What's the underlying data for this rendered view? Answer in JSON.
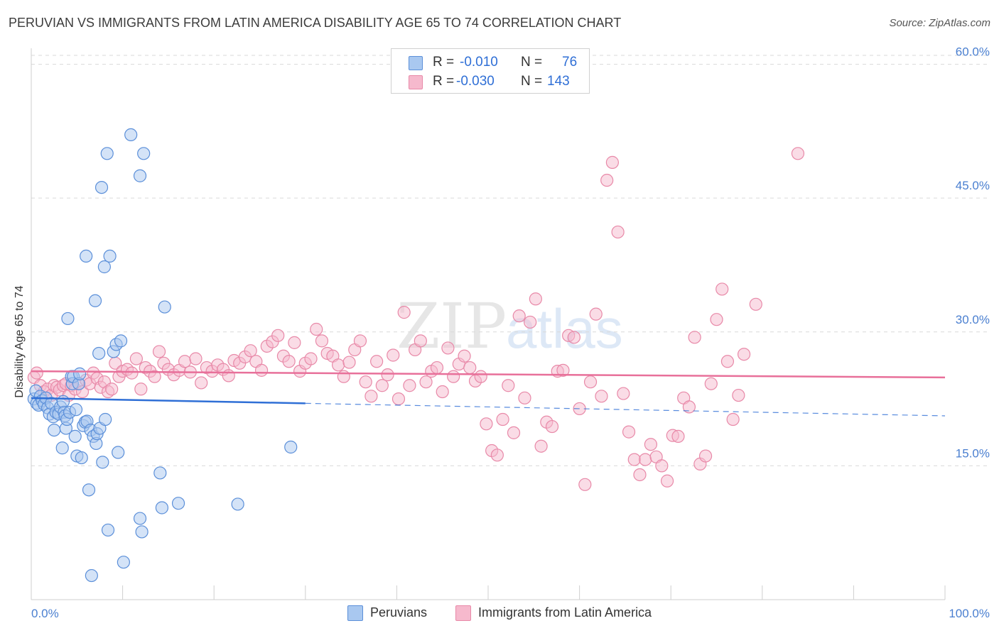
{
  "title": "PERUVIAN VS IMMIGRANTS FROM LATIN AMERICA DISABILITY AGE 65 TO 74 CORRELATION CHART",
  "source": "Source: ZipAtlas.com",
  "watermark": {
    "part1": "ZIP",
    "part2": "atlas"
  },
  "colors": {
    "blue_fill": "#a9c8f0",
    "blue_stroke": "#5b8fd9",
    "blue_line": "#2f6fd6",
    "pink_fill": "#f6b9cd",
    "pink_stroke": "#e889a8",
    "pink_line": "#e8709a",
    "grid": "#d9d9d9",
    "axis_label": "#4a7fd0"
  },
  "legend_top": {
    "rows": [
      {
        "r_label": "R =",
        "r_value": "-0.010",
        "n_label": "N =",
        "n_value": "76"
      },
      {
        "r_label": "R =",
        "r_value": "-0.030",
        "n_label": "N =",
        "n_value": "143"
      }
    ]
  },
  "legend_bottom": {
    "items": [
      "Peruvians",
      "Immigrants from Latin America"
    ]
  },
  "chart_data": {
    "type": "scatter",
    "xlabel": "",
    "ylabel": "Disability Age 65 to 74",
    "xlim": [
      0,
      100
    ],
    "ylim": [
      0,
      61
    ],
    "x_tick_labels": [
      "0.0%",
      "100.0%"
    ],
    "y_ticks": [
      15,
      30,
      45,
      60
    ],
    "y_tick_labels": [
      "15.0%",
      "30.0%",
      "45.0%",
      "60.0%"
    ],
    "grid": "horizontal dashed",
    "legend": "top-center",
    "series": [
      {
        "name": "Peruvians",
        "color": "#5b8fd9",
        "trend": {
          "x_solid": [
            0,
            30
          ],
          "x_dashed": [
            30,
            100
          ],
          "y_at_0": 22.6,
          "y_at_100": 20.6
        },
        "points": [
          [
            0.3,
            22.5
          ],
          [
            0.5,
            23.4
          ],
          [
            0.6,
            22.0
          ],
          [
            0.8,
            21.8
          ],
          [
            1.0,
            22.8
          ],
          [
            1.2,
            22.3
          ],
          [
            1.4,
            21.9
          ],
          [
            1.6,
            22.6
          ],
          [
            1.8,
            21.5
          ],
          [
            2.0,
            20.8
          ],
          [
            2.2,
            22.0
          ],
          [
            2.4,
            20.5
          ],
          [
            2.5,
            19.0
          ],
          [
            2.7,
            21.0
          ],
          [
            3.0,
            20.8
          ],
          [
            3.2,
            21.6
          ],
          [
            3.4,
            17.0
          ],
          [
            3.5,
            22.2
          ],
          [
            3.6,
            21.0
          ],
          [
            3.7,
            20.6
          ],
          [
            3.8,
            19.2
          ],
          [
            3.9,
            20.2
          ],
          [
            4.0,
            31.5
          ],
          [
            4.2,
            21.0
          ],
          [
            4.4,
            25.0
          ],
          [
            4.5,
            24.2
          ],
          [
            4.6,
            25.0
          ],
          [
            4.8,
            18.3
          ],
          [
            4.9,
            21.3
          ],
          [
            5.0,
            16.1
          ],
          [
            5.2,
            24.2
          ],
          [
            5.3,
            25.3
          ],
          [
            5.5,
            15.9
          ],
          [
            5.7,
            19.5
          ],
          [
            5.9,
            19.9
          ],
          [
            6.0,
            38.5
          ],
          [
            6.1,
            20.0
          ],
          [
            6.3,
            12.3
          ],
          [
            6.5,
            19.0
          ],
          [
            6.6,
            2.7
          ],
          [
            6.8,
            18.3
          ],
          [
            7.0,
            33.5
          ],
          [
            7.1,
            17.5
          ],
          [
            7.2,
            18.6
          ],
          [
            7.4,
            27.6
          ],
          [
            7.5,
            19.2
          ],
          [
            7.7,
            46.2
          ],
          [
            7.8,
            15.4
          ],
          [
            8.0,
            37.3
          ],
          [
            8.1,
            20.2
          ],
          [
            8.3,
            50.0
          ],
          [
            8.4,
            7.8
          ],
          [
            8.6,
            38.5
          ],
          [
            9.0,
            27.8
          ],
          [
            9.3,
            28.6
          ],
          [
            9.5,
            16.5
          ],
          [
            9.8,
            29.0
          ],
          [
            10.1,
            4.2
          ],
          [
            10.9,
            52.1
          ],
          [
            11.9,
            47.5
          ],
          [
            11.9,
            9.1
          ],
          [
            12.1,
            7.6
          ],
          [
            12.3,
            50.0
          ],
          [
            14.1,
            14.2
          ],
          [
            14.3,
            10.3
          ],
          [
            14.6,
            32.8
          ],
          [
            16.1,
            10.8
          ],
          [
            22.6,
            10.7
          ],
          [
            28.4,
            17.1
          ]
        ]
      },
      {
        "name": "Immigrants from Latin America",
        "color": "#e889a8",
        "trend": {
          "x_solid": [
            0,
            100
          ],
          "y_at_0": 25.6,
          "y_at_100": 24.9
        },
        "points": [
          [
            0.3,
            24.9
          ],
          [
            0.6,
            25.4
          ],
          [
            1.0,
            24.0
          ],
          [
            1.4,
            23.3
          ],
          [
            1.8,
            23.6
          ],
          [
            2.2,
            22.9
          ],
          [
            2.5,
            24.0
          ],
          [
            2.8,
            23.8
          ],
          [
            3.1,
            23.5
          ],
          [
            3.5,
            24.0
          ],
          [
            3.8,
            24.2
          ],
          [
            4.1,
            22.9
          ],
          [
            4.4,
            24.0
          ],
          [
            4.8,
            23.6
          ],
          [
            5.2,
            24.2
          ],
          [
            5.6,
            23.3
          ],
          [
            6.0,
            24.6
          ],
          [
            6.4,
            24.2
          ],
          [
            6.8,
            25.4
          ],
          [
            7.2,
            24.8
          ],
          [
            7.6,
            23.8
          ],
          [
            8.0,
            24.4
          ],
          [
            8.4,
            23.3
          ],
          [
            8.8,
            23.6
          ],
          [
            9.2,
            26.5
          ],
          [
            9.6,
            25.0
          ],
          [
            10.0,
            25.6
          ],
          [
            10.5,
            25.8
          ],
          [
            11.0,
            25.4
          ],
          [
            11.5,
            27.0
          ],
          [
            12.0,
            23.6
          ],
          [
            12.5,
            26.0
          ],
          [
            13.0,
            25.6
          ],
          [
            13.5,
            25.0
          ],
          [
            14.0,
            27.8
          ],
          [
            14.5,
            26.5
          ],
          [
            15.0,
            25.8
          ],
          [
            15.6,
            25.2
          ],
          [
            16.2,
            25.7
          ],
          [
            16.8,
            26.7
          ],
          [
            17.4,
            25.5
          ],
          [
            18.0,
            27.0
          ],
          [
            18.6,
            24.3
          ],
          [
            19.2,
            26.0
          ],
          [
            19.8,
            25.6
          ],
          [
            20.4,
            26.3
          ],
          [
            21.0,
            25.8
          ],
          [
            21.6,
            25.1
          ],
          [
            22.2,
            26.8
          ],
          [
            22.8,
            26.5
          ],
          [
            23.4,
            27.2
          ],
          [
            24.0,
            27.9
          ],
          [
            24.6,
            26.7
          ],
          [
            25.2,
            25.7
          ],
          [
            25.8,
            28.4
          ],
          [
            26.4,
            28.9
          ],
          [
            27.0,
            29.6
          ],
          [
            27.6,
            27.3
          ],
          [
            28.2,
            26.7
          ],
          [
            28.8,
            28.8
          ],
          [
            29.4,
            25.6
          ],
          [
            30.0,
            26.5
          ],
          [
            30.6,
            27.0
          ],
          [
            31.2,
            30.3
          ],
          [
            31.8,
            29.0
          ],
          [
            32.4,
            27.6
          ],
          [
            33.0,
            27.3
          ],
          [
            33.6,
            26.3
          ],
          [
            34.2,
            25.0
          ],
          [
            34.8,
            26.6
          ],
          [
            35.4,
            28.0
          ],
          [
            36.0,
            29.0
          ],
          [
            36.6,
            24.4
          ],
          [
            37.2,
            22.8
          ],
          [
            37.8,
            26.7
          ],
          [
            38.4,
            24.0
          ],
          [
            39.0,
            25.2
          ],
          [
            39.6,
            27.4
          ],
          [
            40.2,
            22.5
          ],
          [
            40.8,
            32.2
          ],
          [
            41.4,
            24.0
          ],
          [
            42.0,
            28.0
          ],
          [
            42.6,
            29.0
          ],
          [
            43.2,
            24.4
          ],
          [
            43.8,
            25.6
          ],
          [
            44.4,
            26.0
          ],
          [
            45.0,
            23.3
          ],
          [
            45.6,
            28.2
          ],
          [
            46.2,
            25.0
          ],
          [
            46.8,
            26.4
          ],
          [
            47.4,
            27.3
          ],
          [
            48.0,
            26.0
          ],
          [
            48.6,
            24.5
          ],
          [
            49.2,
            25.0
          ],
          [
            49.8,
            19.7
          ],
          [
            50.4,
            16.7
          ],
          [
            51.0,
            16.2
          ],
          [
            51.6,
            20.2
          ],
          [
            52.2,
            24.0
          ],
          [
            52.8,
            18.7
          ],
          [
            53.4,
            31.8
          ],
          [
            54.0,
            22.6
          ],
          [
            54.6,
            31.1
          ],
          [
            55.2,
            33.7
          ],
          [
            55.8,
            17.2
          ],
          [
            56.4,
            19.9
          ],
          [
            57.0,
            19.4
          ],
          [
            57.6,
            25.6
          ],
          [
            58.2,
            25.7
          ],
          [
            58.8,
            29.6
          ],
          [
            59.4,
            29.4
          ],
          [
            60.0,
            21.4
          ],
          [
            60.6,
            12.9
          ],
          [
            61.2,
            24.4
          ],
          [
            61.8,
            32.0
          ],
          [
            62.4,
            22.8
          ],
          [
            63.0,
            47.0
          ],
          [
            63.6,
            49.0
          ],
          [
            64.2,
            41.2
          ],
          [
            64.8,
            23.1
          ],
          [
            65.4,
            18.8
          ],
          [
            66.0,
            15.7
          ],
          [
            66.6,
            14.0
          ],
          [
            67.2,
            15.7
          ],
          [
            67.8,
            17.4
          ],
          [
            68.4,
            16.0
          ],
          [
            69.0,
            15.0
          ],
          [
            69.6,
            13.3
          ],
          [
            70.2,
            18.4
          ],
          [
            70.8,
            18.3
          ],
          [
            71.4,
            22.6
          ],
          [
            72.0,
            21.6
          ],
          [
            72.6,
            29.4
          ],
          [
            73.2,
            15.2
          ],
          [
            73.8,
            16.1
          ],
          [
            74.4,
            24.2
          ],
          [
            75.0,
            31.4
          ],
          [
            75.6,
            34.8
          ],
          [
            76.2,
            26.7
          ],
          [
            76.8,
            20.2
          ],
          [
            77.4,
            22.9
          ],
          [
            78.0,
            27.5
          ],
          [
            79.3,
            33.1
          ],
          [
            83.9,
            50.0
          ]
        ]
      }
    ]
  }
}
